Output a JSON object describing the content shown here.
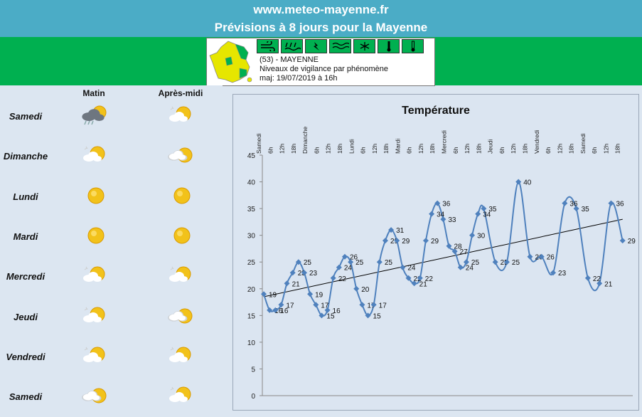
{
  "header": {
    "site": "www.meteo-mayenne.fr",
    "subtitle": "Prévisions à 8 jours pour la Mayenne"
  },
  "vigilance": {
    "dept": "(53) - MAYENNE",
    "desc": "Niveaux de vigilance par phénomène",
    "updated": "maj: 19/07/2019 à 16h",
    "phenomena": [
      "wind-icon",
      "rain-flood-icon",
      "thunderstorm-icon",
      "flood-icon",
      "snow-ice-icon",
      "heat-thermometer-icon",
      "cold-thermometer-icon"
    ],
    "color": "#00b050"
  },
  "forecast": {
    "col_morning": "Matin",
    "col_afternoon": "Après-midi",
    "days": [
      {
        "name": "Samedi",
        "morning": "storm-rain",
        "afternoon": "sun-cloud"
      },
      {
        "name": "Dimanche",
        "morning": "sun-cloud",
        "afternoon": "cloud-sun"
      },
      {
        "name": "Lundi",
        "morning": "sun",
        "afternoon": "sun"
      },
      {
        "name": "Mardi",
        "morning": "sun",
        "afternoon": "sun"
      },
      {
        "name": "Mercredi",
        "morning": "sun-cloud",
        "afternoon": "sun-cloud"
      },
      {
        "name": "Jeudi",
        "morning": "sun-cloud",
        "afternoon": "cloud-sun"
      },
      {
        "name": "Vendredi",
        "morning": "sun-cloud",
        "afternoon": "sun-cloud"
      },
      {
        "name": "Samedi",
        "morning": "cloud-sun",
        "afternoon": "sun-cloud"
      }
    ]
  },
  "chart_data": {
    "type": "line",
    "title": "Température",
    "x": [
      "Samedi",
      "6h",
      "12h",
      "18h",
      "Dimanche",
      "6h",
      "12h",
      "18h",
      "Lundi",
      "6h",
      "12h",
      "18h",
      "Mardi",
      "6h",
      "12h",
      "18h",
      "Mercredi",
      "6h",
      "12h",
      "18h",
      "Jeudi",
      "6h",
      "12h",
      "18h",
      "Vendredi",
      "6h",
      "12h",
      "18h",
      "Samedi",
      "6h",
      "12h",
      "18h"
    ],
    "points": [
      {
        "x": 0,
        "y": 19
      },
      {
        "x": 0.5,
        "y": 16
      },
      {
        "x": 1,
        "y": 16
      },
      {
        "x": 1.5,
        "y": 17
      },
      {
        "x": 2,
        "y": 21
      },
      {
        "x": 2.5,
        "y": 23
      },
      {
        "x": 3,
        "y": 25
      },
      {
        "x": 3.5,
        "y": 23
      },
      {
        "x": 4,
        "y": 19
      },
      {
        "x": 4.5,
        "y": 17
      },
      {
        "x": 5,
        "y": 15
      },
      {
        "x": 5.5,
        "y": 16
      },
      {
        "x": 6,
        "y": 22
      },
      {
        "x": 6.5,
        "y": 24
      },
      {
        "x": 7,
        "y": 26
      },
      {
        "x": 7.5,
        "y": 25
      },
      {
        "x": 8,
        "y": 20
      },
      {
        "x": 8.5,
        "y": 17
      },
      {
        "x": 9,
        "y": 15
      },
      {
        "x": 9.5,
        "y": 17
      },
      {
        "x": 10,
        "y": 25
      },
      {
        "x": 10.5,
        "y": 29
      },
      {
        "x": 11,
        "y": 31
      },
      {
        "x": 11.5,
        "y": 29
      },
      {
        "x": 12,
        "y": 24
      },
      {
        "x": 12.5,
        "y": 22
      },
      {
        "x": 13,
        "y": 21
      },
      {
        "x": 13.5,
        "y": 22
      },
      {
        "x": 14,
        "y": 29
      },
      {
        "x": 14.5,
        "y": 34
      },
      {
        "x": 15,
        "y": 36
      },
      {
        "x": 15.5,
        "y": 33
      },
      {
        "x": 16,
        "y": 28
      },
      {
        "x": 16.5,
        "y": 27
      },
      {
        "x": 17,
        "y": 24
      },
      {
        "x": 17.5,
        "y": 25
      },
      {
        "x": 18,
        "y": 30
      },
      {
        "x": 18.5,
        "y": 34
      },
      {
        "x": 19,
        "y": 35
      },
      {
        "x": 20,
        "y": 25
      },
      {
        "x": 21,
        "y": 25
      },
      {
        "x": 22,
        "y": 40
      },
      {
        "x": 23,
        "y": 26
      },
      {
        "x": 24,
        "y": 26
      },
      {
        "x": 25,
        "y": 23
      },
      {
        "x": 26,
        "y": 36
      },
      {
        "x": 27,
        "y": 35
      },
      {
        "x": 28,
        "y": 22
      },
      {
        "x": 29,
        "y": 21
      },
      {
        "x": 30,
        "y": 36
      },
      {
        "x": 31,
        "y": 29
      }
    ],
    "trend": {
      "start": 18.5,
      "end": 33
    },
    "ylim": [
      0,
      45
    ],
    "yticks": [
      0,
      5,
      10,
      15,
      20,
      25,
      30,
      35,
      40,
      45
    ],
    "line_color": "#4f81bd"
  }
}
